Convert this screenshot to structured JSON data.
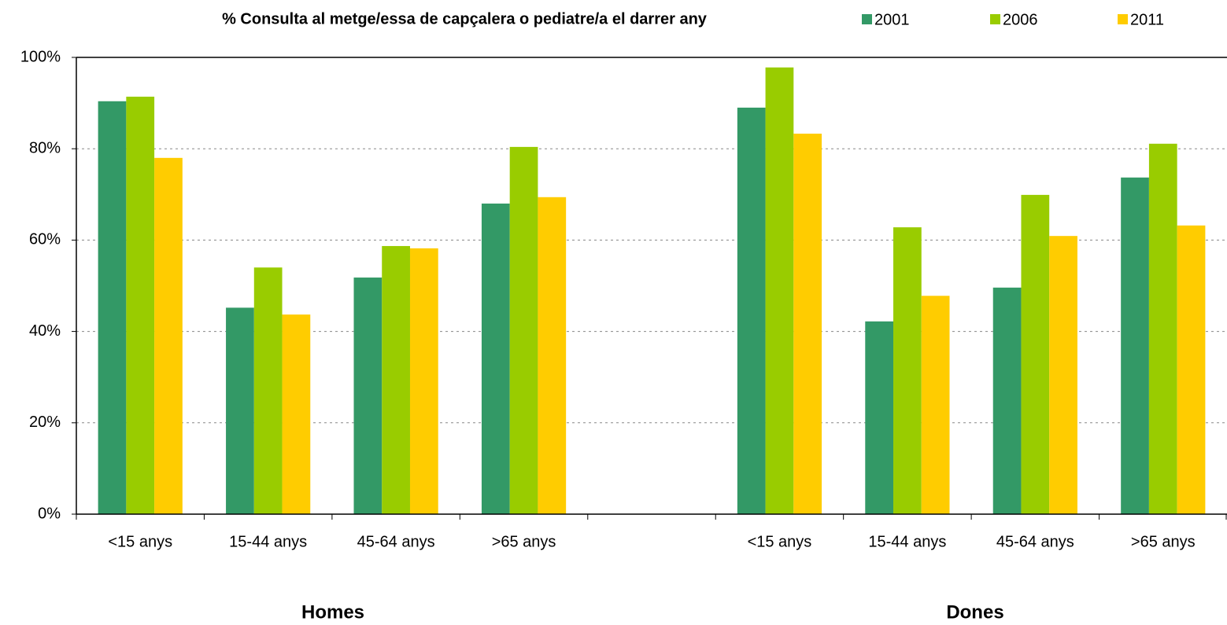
{
  "chart_data": {
    "type": "bar",
    "title": "% Consulta al metge/essa de capçalera o pediatre/a el darrer any",
    "categories": [
      "<15 anys",
      "15-44 anys",
      "45-64 anys",
      ">65 anys",
      null,
      "<15 anys",
      "15-44 anys",
      "45-64 anys",
      ">65 anys"
    ],
    "group_labels": [
      "Homes",
      "Dones"
    ],
    "series": [
      {
        "name": "2001",
        "color": "#339966",
        "values": [
          90.4,
          45.2,
          51.8,
          68.0,
          null,
          89.0,
          42.2,
          49.6,
          73.7
        ]
      },
      {
        "name": "2006",
        "color": "#99cc00",
        "values": [
          91.4,
          54.0,
          58.7,
          80.4,
          null,
          97.8,
          62.8,
          69.9,
          81.1
        ]
      },
      {
        "name": "2011",
        "color": "#ffcc00",
        "values": [
          78.0,
          43.7,
          58.2,
          69.4,
          null,
          83.3,
          47.8,
          60.9,
          63.2
        ]
      }
    ],
    "ylim": [
      0,
      100
    ],
    "yticks": [
      {
        "value": 0,
        "label": "0%"
      },
      {
        "value": 20,
        "label": "20%"
      },
      {
        "value": 40,
        "label": "40%"
      },
      {
        "value": 60,
        "label": "60%"
      },
      {
        "value": 80,
        "label": "80%"
      },
      {
        "value": 100,
        "label": "100%"
      }
    ],
    "grid": true,
    "legend": "top-right"
  }
}
